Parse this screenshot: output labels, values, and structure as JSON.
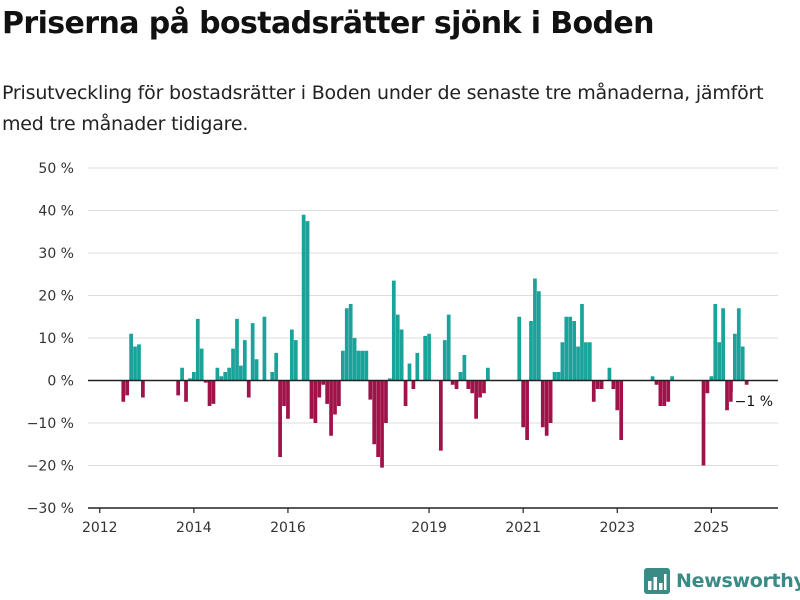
{
  "title": "Priserna på bostadsrätter sjönk i Boden",
  "subtitle": "Prisutveckling för bostadsrätter i Boden under de senaste tre månaderna, jämfört med tre månader tidigare.",
  "brand": {
    "name": "Newsworthy",
    "icon": "bar-chart-logo-icon",
    "color": "#3a8a86"
  },
  "colors": {
    "positive": "#1aa39a",
    "negative": "#a0124a",
    "grid": "#dddddd",
    "axis": "#222222"
  },
  "chart_data": {
    "type": "bar",
    "title": "Priserna på bostadsrätter sjönk i Boden",
    "xlabel": "",
    "ylabel": "",
    "ylim": [
      -30,
      50
    ],
    "yticks": [
      -30,
      -20,
      -10,
      0,
      10,
      20,
      30,
      40,
      50
    ],
    "ytick_labels": [
      "−30 %",
      "−20 %",
      "−10 %",
      "0 %",
      "10 %",
      "20 %",
      "30 %",
      "40 %",
      "50 %"
    ],
    "xlim": [
      "2011-10",
      "2026-06"
    ],
    "xticks": [
      "2012-01",
      "2014-01",
      "2016-01",
      "2019-01",
      "2021-01",
      "2023-01",
      "2025-01"
    ],
    "xtick_labels": [
      "2012",
      "2014",
      "2016",
      "2019",
      "2021",
      "2023",
      "2025"
    ],
    "grid": true,
    "end_label": "−1 %",
    "series": [
      {
        "start": "2012-07",
        "frequency": "monthly",
        "values": [
          -5,
          -3.5,
          11,
          8,
          8.5,
          -4,
          null,
          null,
          null,
          null,
          null,
          null,
          null,
          null,
          -3.5,
          3,
          -5,
          0.5,
          2,
          14.5,
          7.5,
          -0.5,
          -6,
          -5.5,
          3,
          1,
          2,
          3,
          7.5,
          14.5,
          3.5,
          9.5,
          -4,
          13.5,
          5,
          null,
          15,
          null,
          2,
          6.5,
          -18,
          -6,
          -9,
          12,
          9.5,
          null,
          39,
          37.5,
          -9,
          -10,
          -4,
          -1,
          -5.5,
          -13,
          -8,
          -6,
          7,
          17,
          18,
          10,
          7,
          7,
          7,
          -4.5,
          -15,
          -18,
          -20.5,
          -10,
          0.5,
          23.5,
          15.5,
          12,
          -6,
          4,
          -2,
          6.5,
          null,
          10.5,
          11,
          null,
          null,
          -16.5,
          9.5,
          15.5,
          -1,
          -2,
          2,
          6,
          -2,
          -3,
          -9,
          -4,
          -3,
          3,
          null,
          null,
          null,
          null,
          null,
          null,
          null,
          15,
          -11,
          -14,
          14,
          24,
          21,
          -11,
          -13,
          -10,
          2,
          2,
          9,
          15,
          15,
          14,
          8,
          18,
          9,
          9,
          -5,
          -2,
          -2,
          null,
          3,
          -2,
          -7,
          -14,
          null,
          null,
          null,
          null,
          null,
          null,
          null,
          1,
          -1,
          -6,
          -6,
          -5,
          1,
          null,
          null,
          null,
          null,
          null,
          null,
          null,
          -20,
          -3,
          1,
          18,
          9,
          17,
          -7,
          -5,
          11,
          17,
          8,
          -1
        ]
      }
    ]
  }
}
